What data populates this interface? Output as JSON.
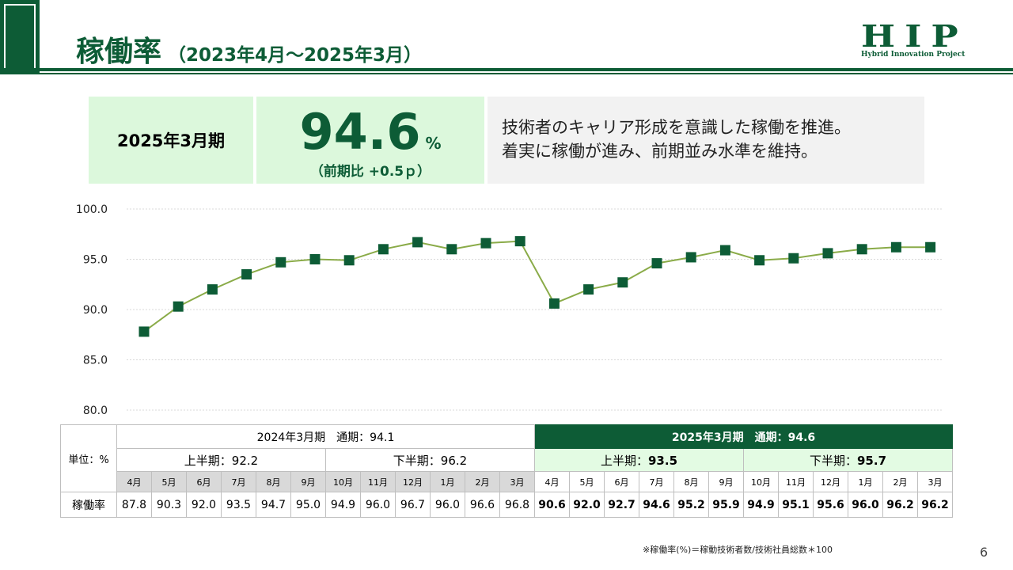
{
  "header": {
    "title_main": "稼働率",
    "title_sub": "（2023年4月～2025年3月）",
    "logo_main": "HIP",
    "logo_sub": "Hybrid Innovation Project"
  },
  "kpi": {
    "period_label": "2025年3月期",
    "value": "94.6",
    "unit": "%",
    "change": "（前期比 +0.5ｐ）",
    "comment_line1": "技術者のキャリア形成を意識した稼働を推進。",
    "comment_line2": "着実に稼働が進み、前期並み水準を維持。"
  },
  "chart_data": {
    "type": "line",
    "categories": [
      "4月",
      "5月",
      "6月",
      "7月",
      "8月",
      "9月",
      "10月",
      "11月",
      "12月",
      "1月",
      "2月",
      "3月",
      "4月",
      "5月",
      "6月",
      "7月",
      "8月",
      "9月",
      "10月",
      "11月",
      "12月",
      "1月",
      "2月",
      "3月"
    ],
    "values": [
      87.8,
      90.3,
      92.0,
      93.5,
      94.7,
      95.0,
      94.9,
      96.0,
      96.7,
      96.0,
      96.6,
      96.8,
      90.6,
      92.0,
      92.7,
      94.6,
      95.2,
      95.9,
      94.9,
      95.1,
      95.6,
      96.0,
      96.2,
      96.2
    ],
    "ylim": [
      80,
      100
    ],
    "yticks": [
      "80.0",
      "85.0",
      "90.0",
      "95.0",
      "100.0"
    ],
    "grid": true,
    "line_color": "#8aab48",
    "marker_color": "#0d5c36"
  },
  "table": {
    "unit_label": "単位：%",
    "row_label": "稼働率",
    "fy2024": {
      "label": "2024年3月期　通期：94.1",
      "h1": "上半期：92.2",
      "h2": "下半期：96.2"
    },
    "fy2025": {
      "label": "2025年3月期　通期：94.6",
      "h1_label": "上半期：",
      "h1_value": "93.5",
      "h2_label": "下半期：",
      "h2_value": "95.7"
    },
    "months": [
      "4月",
      "5月",
      "6月",
      "7月",
      "8月",
      "9月",
      "10月",
      "11月",
      "12月",
      "1月",
      "2月",
      "3月",
      "4月",
      "5月",
      "6月",
      "7月",
      "8月",
      "9月",
      "10月",
      "11月",
      "12月",
      "1月",
      "2月",
      "3月"
    ],
    "values": [
      "87.8",
      "90.3",
      "92.0",
      "93.5",
      "94.7",
      "95.0",
      "94.9",
      "96.0",
      "96.7",
      "96.0",
      "96.6",
      "96.8",
      "90.6",
      "92.0",
      "92.7",
      "94.6",
      "95.2",
      "95.9",
      "94.9",
      "95.1",
      "95.6",
      "96.0",
      "96.2",
      "96.2"
    ]
  },
  "footnote": "※稼働率(%)＝稼動技術者数/技術社員総数＊100",
  "page_number": "6",
  "colors": {
    "brand": "#0d5c36",
    "highlight_bg": "#dcf8dc",
    "line": "#8aab48"
  }
}
